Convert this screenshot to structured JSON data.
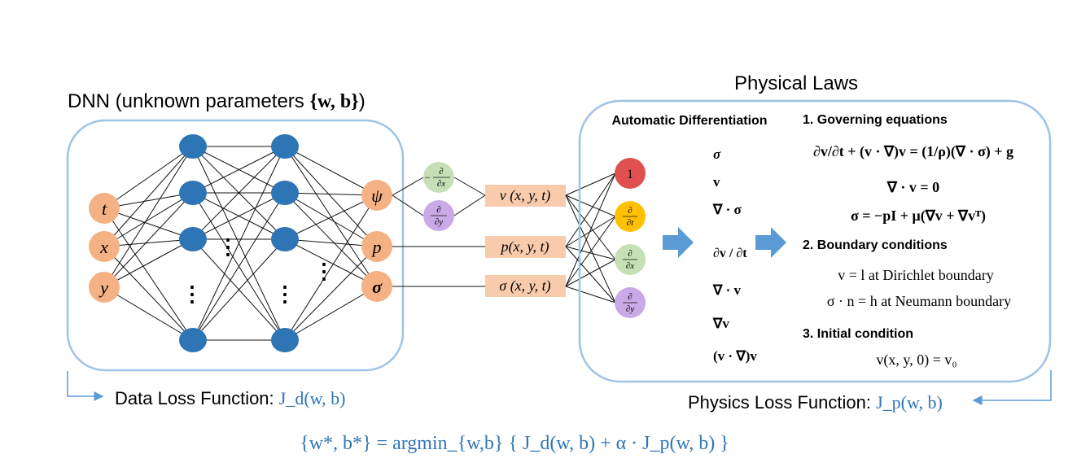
{
  "dnn": {
    "title_prefix": "DNN (unknown parameters ",
    "title_params": "{w, b}",
    "title_suffix": ")",
    "inputs": [
      "t",
      "x",
      "y"
    ],
    "outputs": [
      "ψ",
      "p",
      "σ"
    ],
    "ellipsis": "⋮"
  },
  "derivatives_stream": {
    "minus": "−",
    "partial": "∂",
    "dx": "∂x",
    "dy": "∂y"
  },
  "fields": {
    "velocity": "v (x, y, t)",
    "pressure": "p(x, y, t)",
    "stress": "σ (x, y, t)"
  },
  "ad_nodes": {
    "one": "1",
    "partial": "∂",
    "dt": "∂t",
    "dx": "∂x",
    "dy": "∂y"
  },
  "physical_laws": {
    "title": "Physical Laws",
    "ad_header": "Automatic Differentiation",
    "ad_terms": [
      "σ",
      "v",
      "∇ · σ",
      "∂v / ∂t",
      "∇ · v",
      "∇v",
      "(v · ∇)v"
    ],
    "governing_header": "1. Governing equations",
    "governing_eqs": [
      "∂v/∂t + (v · ∇)v = (1/ρ)(∇ · σ) + g",
      "∇ · v = 0",
      "σ = −pI + μ(∇v + ∇vᵀ)"
    ],
    "boundary_header": "2. Boundary conditions",
    "dirichlet": "v = l at Dirichlet boundary",
    "neumann": "σ · n = h at Neumann boundary",
    "initial_header": "3. Initial condition",
    "initial_eq": "v(x, y, 0) = v₀"
  },
  "losses": {
    "data_label": "Data Loss Function: ",
    "data_symbol": "J_d(w, b)",
    "physics_label": "Physics Loss Function: ",
    "physics_symbol": "J_p(w, b)",
    "objective": "{w*, b*} = argmin_{w,b} { J_d(w, b) + α · J_p(w, b) }"
  },
  "colors": {
    "neuron": "#2e75b6",
    "io_node": "#f4b183",
    "field_box": "#f8cbad",
    "container": "#9dc3e6",
    "arrow": "#5b9bd5",
    "formula_blue": "#2e75b6",
    "node_red": "#e05050",
    "node_gold": "#ffc000",
    "node_green": "#c5e0b4",
    "node_purple": "#c9a9e6"
  }
}
